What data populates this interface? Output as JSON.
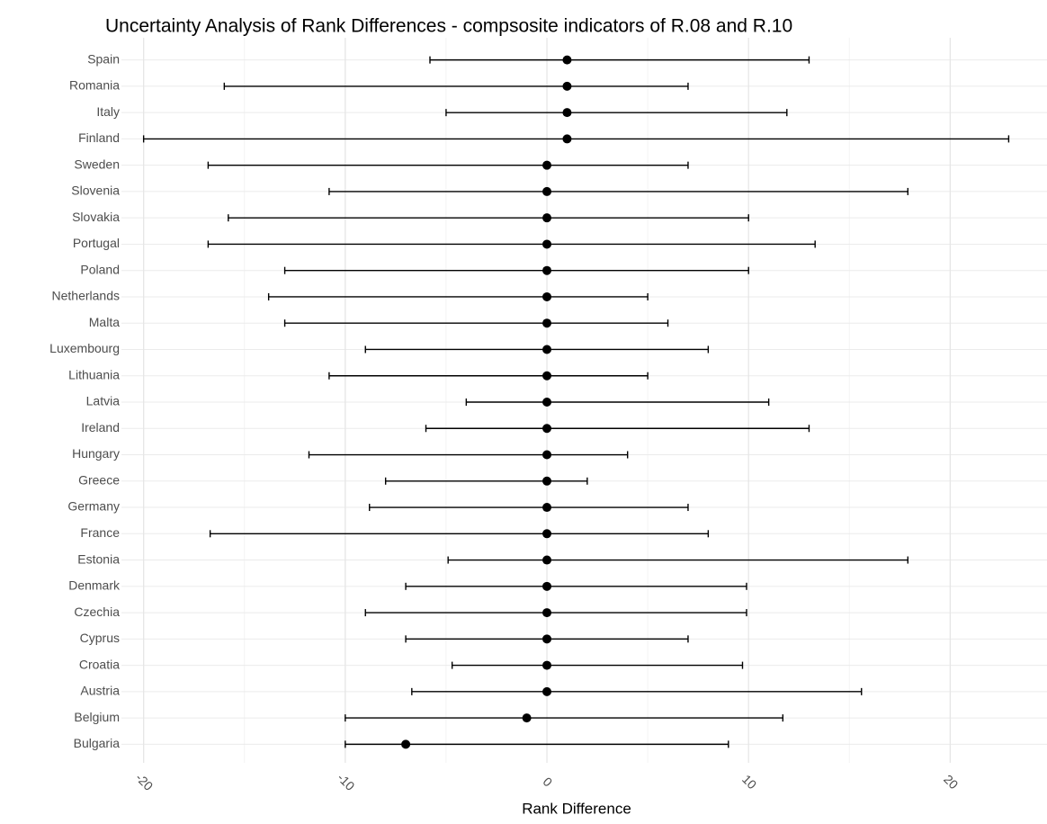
{
  "chart_data": {
    "type": "errorbar-dot",
    "title": "Uncertainty Analysis of Rank Differences - compsosite indicators of R.08 and  R.10",
    "x_label": "Rank Difference",
    "categories": [
      "Spain",
      "Romania",
      "Italy",
      "Finland",
      "Sweden",
      "Slovenia",
      "Slovakia",
      "Portugal",
      "Poland",
      "Netherlands",
      "Malta",
      "Luxembourg",
      "Lithuania",
      "Latvia",
      "Ireland",
      "Hungary",
      "Greece",
      "Germany",
      "France",
      "Estonia",
      "Denmark",
      "Czechia",
      "Cyprus",
      "Croatia",
      "Austria",
      "Belgium",
      "Bulgaria"
    ],
    "values": [
      1,
      1,
      1,
      1,
      0,
      0,
      0,
      0,
      0,
      0,
      0,
      0,
      0,
      0,
      0,
      0,
      0,
      0,
      0,
      0,
      0,
      0,
      0,
      0,
      0,
      -1,
      -7
    ],
    "lower": [
      -5.8,
      -16,
      -5,
      -20,
      -16.8,
      -10.8,
      -15.8,
      -16.8,
      -13,
      -13.8,
      -13,
      -9,
      -10.8,
      -4,
      -6,
      -11.8,
      -8,
      -8.8,
      -16.7,
      -4.9,
      -7,
      -9,
      -7,
      -4.7,
      -6.7,
      -10,
      -10
    ],
    "upper": [
      13,
      7,
      11.9,
      22.9,
      7,
      17.9,
      10,
      13.3,
      10,
      5,
      6,
      8,
      5,
      11,
      13,
      4,
      2,
      7,
      8,
      17.9,
      9.9,
      9.9,
      7,
      9.7,
      15.6,
      11.7,
      9
    ],
    "color": "#000000",
    "xlim": [
      -21.1,
      24.8
    ],
    "xticks": [
      -20,
      -10,
      0,
      10,
      20
    ],
    "xminor": [
      -15,
      -5,
      5,
      15
    ],
    "grid": true
  }
}
